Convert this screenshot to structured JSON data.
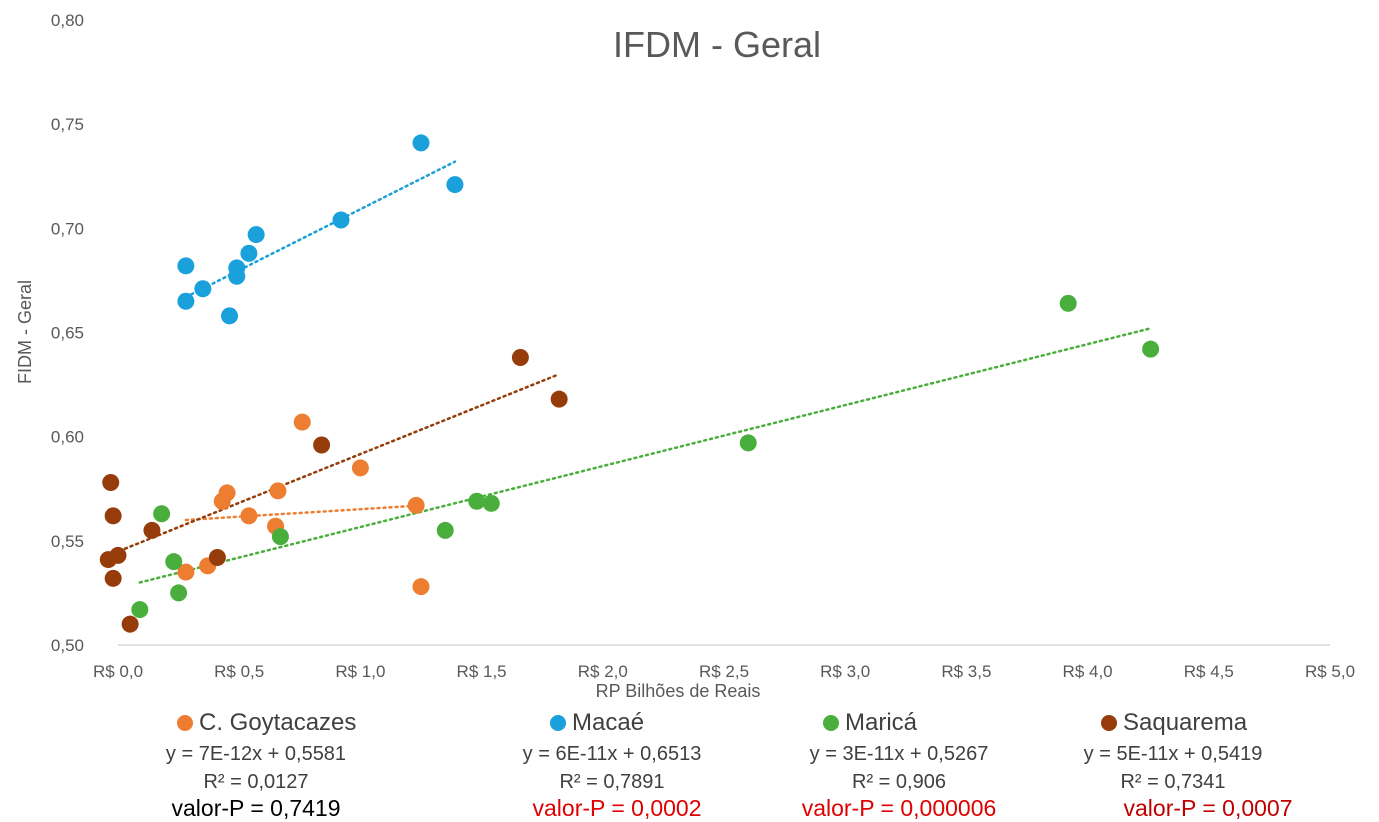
{
  "chart_data": {
    "type": "scatter",
    "title": "IFDM - Geral",
    "xlabel": "RP Bilhões de Reais",
    "ylabel": "FIDM - Geral",
    "xlim": [
      0,
      5
    ],
    "ylim": [
      0.5,
      0.8
    ],
    "x_ticks": [
      "R$ 0,0",
      "R$ 0,5",
      "R$ 1,0",
      "R$ 1,5",
      "R$ 2,0",
      "R$ 2,5",
      "R$ 3,0",
      "R$ 3,5",
      "R$ 4,0",
      "R$ 4,5",
      "R$ 5,0"
    ],
    "y_ticks": [
      "0,50",
      "0,55",
      "0,60",
      "0,65",
      "0,70",
      "0,75",
      "0,80"
    ],
    "grid": false,
    "series": [
      {
        "name": "C. Goytacazes",
        "color": "#ED7D31",
        "points": [
          [
            0.28,
            0.535
          ],
          [
            0.37,
            0.538
          ],
          [
            0.43,
            0.569
          ],
          [
            0.45,
            0.573
          ],
          [
            0.54,
            0.562
          ],
          [
            0.65,
            0.557
          ],
          [
            0.66,
            0.574
          ],
          [
            0.76,
            0.607
          ],
          [
            1.0,
            0.585
          ],
          [
            1.23,
            0.567
          ],
          [
            1.25,
            0.528
          ]
        ],
        "trend": {
          "x": [
            0.28,
            1.25
          ],
          "y": [
            0.56,
            0.567
          ]
        },
        "equation": "y = 7E-12x + 0,5581",
        "r2": "R² = 0,0127",
        "p_value": "valor-P = 0,7419",
        "p_color": "#000000"
      },
      {
        "name": "Macaé",
        "color": "#1AA0DB",
        "points": [
          [
            0.28,
            0.665
          ],
          [
            0.28,
            0.682
          ],
          [
            0.35,
            0.671
          ],
          [
            0.46,
            0.658
          ],
          [
            0.49,
            0.677
          ],
          [
            0.49,
            0.681
          ],
          [
            0.54,
            0.688
          ],
          [
            0.57,
            0.697
          ],
          [
            0.92,
            0.704
          ],
          [
            1.25,
            0.741
          ],
          [
            1.39,
            0.721
          ]
        ],
        "trend": {
          "x": [
            0.28,
            1.39
          ],
          "y": [
            0.667,
            0.732
          ]
        },
        "equation": "y = 6E-11x + 0,6513",
        "r2": "R² = 0,7891",
        "p_value": "valor-P = 0,0002",
        "p_color": "#E00000"
      },
      {
        "name": "Maricá",
        "color": "#4AAE3C",
        "points": [
          [
            0.09,
            0.517
          ],
          [
            0.18,
            0.563
          ],
          [
            0.23,
            0.54
          ],
          [
            0.25,
            0.525
          ],
          [
            0.67,
            0.552
          ],
          [
            1.35,
            0.555
          ],
          [
            1.48,
            0.569
          ],
          [
            1.54,
            0.568
          ],
          [
            2.6,
            0.597
          ],
          [
            3.92,
            0.664
          ],
          [
            4.26,
            0.642
          ]
        ],
        "trend": {
          "x": [
            0.09,
            4.26
          ],
          "y": [
            0.53,
            0.652
          ]
        },
        "equation": "y = 3E-11x + 0,5267",
        "r2": "R² = 0,906",
        "p_value": "valor-P = 0,000006",
        "p_color": "#E00000"
      },
      {
        "name": "Saquarema",
        "color": "#963C0A",
        "points": [
          [
            -0.04,
            0.541
          ],
          [
            -0.03,
            0.578
          ],
          [
            -0.02,
            0.562
          ],
          [
            -0.02,
            0.532
          ],
          [
            0.0,
            0.543
          ],
          [
            0.05,
            0.51
          ],
          [
            0.14,
            0.555
          ],
          [
            0.41,
            0.542
          ],
          [
            0.84,
            0.596
          ],
          [
            1.66,
            0.638
          ],
          [
            1.82,
            0.618
          ]
        ],
        "trend": {
          "x": [
            -0.04,
            1.82
          ],
          "y": [
            0.543,
            0.63
          ]
        },
        "equation": "y = 5E-11x + 0,5419",
        "r2": "R² = 0,7341",
        "p_value": "valor-P = 0,0007",
        "p_color": "#C00000"
      }
    ]
  }
}
